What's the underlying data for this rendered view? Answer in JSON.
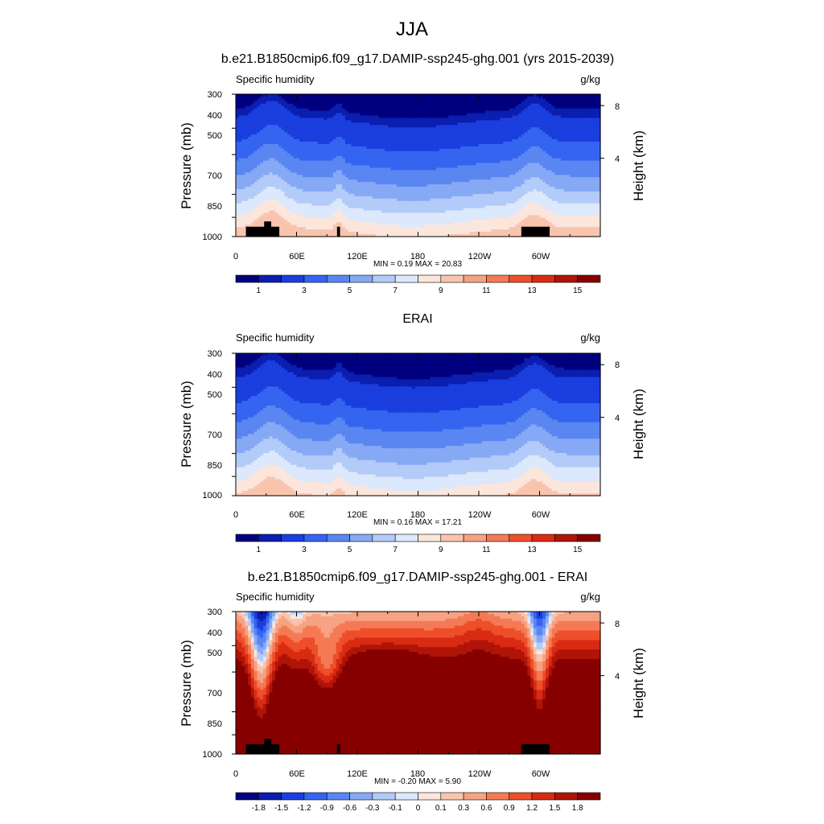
{
  "figure": {
    "title": "JJA"
  },
  "colors": {
    "levels": [
      "#00007f",
      "#0a1eb0",
      "#1b3ede",
      "#3464f0",
      "#5a86f2",
      "#86a9f5",
      "#b3cbf8",
      "#dce8fb",
      "#fce6dc",
      "#f9c4ae",
      "#f6a283",
      "#f47a55",
      "#ee4e2a",
      "#d92b13",
      "#b01408",
      "#870000"
    ],
    "terrain": "#000000"
  },
  "chart_data": [
    {
      "type": "heatmap",
      "title": "b.e21.B1850cmip6.f09_g17.DAMIP-ssp245-ghg.001 (yrs 2015-2039)",
      "left_label": "Specific humidity",
      "right_label": "g/kg",
      "ylabel": "Pressure (mb)",
      "ylabel_right": "Height (km)",
      "x_ticks": [
        "0",
        "60E",
        "120E",
        "180",
        "120W",
        "60W"
      ],
      "x_range": [
        0,
        360
      ],
      "y_ticks": [
        "300",
        "400",
        "500",
        "700",
        "850",
        "1000"
      ],
      "y_range_mb": [
        300,
        1000
      ],
      "y_scale": "log",
      "y_right_ticks": [
        "8",
        "4"
      ],
      "min_text": "MIN =   0.19  MAX =  20.83",
      "colorbar_ticks": [
        "1",
        "3",
        "5",
        "7",
        "9",
        "11",
        "13",
        "15"
      ],
      "field": "abs",
      "terrain": true,
      "scale": 1.0
    },
    {
      "type": "heatmap",
      "title": "ERAI",
      "left_label": "Specific humidity",
      "right_label": "g/kg",
      "ylabel": "Pressure (mb)",
      "ylabel_right": "Height (km)",
      "x_ticks": [
        "0",
        "60E",
        "120E",
        "180",
        "120W",
        "60W"
      ],
      "x_range": [
        0,
        360
      ],
      "y_ticks": [
        "300",
        "400",
        "500",
        "700",
        "850",
        "1000"
      ],
      "y_range_mb": [
        300,
        1000
      ],
      "y_scale": "log",
      "y_right_ticks": [
        "8",
        "4"
      ],
      "min_text": "MIN =   0.16  MAX =  17.21",
      "colorbar_ticks": [
        "1",
        "3",
        "5",
        "7",
        "9",
        "11",
        "13",
        "15"
      ],
      "field": "abs",
      "terrain": false,
      "scale": 0.93
    },
    {
      "type": "heatmap",
      "title": "b.e21.B1850cmip6.f09_g17.DAMIP-ssp245-ghg.001 - ERAI",
      "left_label": "Specific humidity",
      "right_label": "g/kg",
      "ylabel": "Pressure (mb)",
      "ylabel_right": "Height (km)",
      "x_ticks": [
        "0",
        "60E",
        "120E",
        "180",
        "120W",
        "60W"
      ],
      "x_range": [
        0,
        360
      ],
      "y_ticks": [
        "300",
        "400",
        "500",
        "700",
        "850",
        "1000"
      ],
      "y_range_mb": [
        300,
        1000
      ],
      "y_scale": "log",
      "y_right_ticks": [
        "8",
        "4"
      ],
      "min_text": "MIN =  -0.20  MAX =   5.90",
      "colorbar_ticks": [
        "-1.8",
        "-1.5",
        "-1.2",
        "-0.9",
        "-0.6",
        "-0.3",
        "-0.1",
        "0",
        "0.1",
        "0.3",
        "0.6",
        "0.9",
        "1.2",
        "1.5",
        "1.8"
      ],
      "field": "diff",
      "terrain": true,
      "scale": 1.0
    }
  ]
}
